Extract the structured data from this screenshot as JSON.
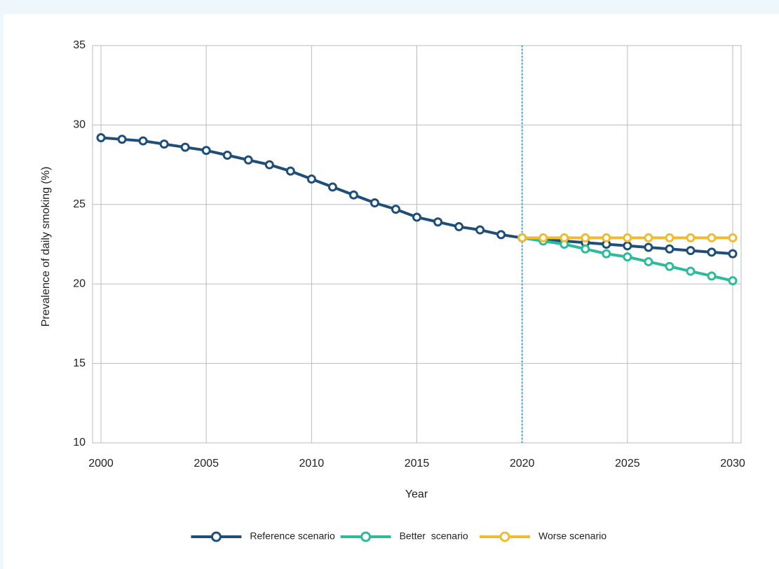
{
  "chart_data": {
    "type": "line",
    "x_label": "Year",
    "y_label": "Prevalence of daily smoking (%)",
    "x": [
      2000,
      2001,
      2002,
      2003,
      2004,
      2005,
      2006,
      2007,
      2008,
      2009,
      2010,
      2011,
      2012,
      2013,
      2014,
      2015,
      2016,
      2017,
      2018,
      2019,
      2020,
      2021,
      2022,
      2023,
      2024,
      2025,
      2026,
      2027,
      2028,
      2029,
      2030
    ],
    "series": [
      {
        "name": "Reference scenario",
        "color": "#1f4e79",
        "values": [
          29.2,
          29.1,
          29.0,
          28.8,
          28.6,
          28.4,
          28.1,
          27.8,
          27.5,
          27.1,
          26.6,
          26.1,
          25.6,
          25.1,
          24.7,
          24.2,
          23.9,
          23.6,
          23.4,
          23.1,
          22.9,
          22.8,
          22.7,
          22.6,
          22.5,
          22.4,
          22.3,
          22.2,
          22.1,
          22.0,
          21.9
        ]
      },
      {
        "name": "Better  scenario",
        "color": "#2dbb9b",
        "values": [
          null,
          null,
          null,
          null,
          null,
          null,
          null,
          null,
          null,
          null,
          null,
          null,
          null,
          null,
          null,
          null,
          null,
          null,
          null,
          null,
          22.9,
          22.7,
          22.5,
          22.2,
          21.9,
          21.7,
          21.4,
          21.1,
          20.8,
          20.5,
          20.2
        ]
      },
      {
        "name": "Worse scenario",
        "color": "#f0bc2e",
        "values": [
          null,
          null,
          null,
          null,
          null,
          null,
          null,
          null,
          null,
          null,
          null,
          null,
          null,
          null,
          null,
          null,
          null,
          null,
          null,
          null,
          22.9,
          22.9,
          22.9,
          22.9,
          22.9,
          22.9,
          22.9,
          22.9,
          22.9,
          22.9,
          22.9
        ]
      }
    ],
    "xlim": [
      1999.6,
      2030.4
    ],
    "xticks": [
      2000,
      2005,
      2010,
      2015,
      2020,
      2025,
      2030
    ],
    "ylim": [
      10,
      35
    ],
    "yticks": [
      10,
      15,
      20,
      25,
      30,
      35
    ],
    "grid": true,
    "vline": 2020,
    "vline_color": "#2aa6d6",
    "legend": "bottom"
  }
}
